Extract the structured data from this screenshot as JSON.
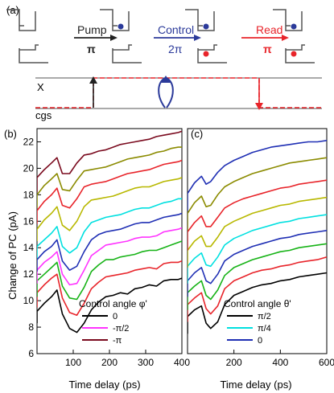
{
  "figure": {
    "panel_a_label": "(a)",
    "panel_b_label": "(b)",
    "panel_c_label": "(c)",
    "steps": [
      {
        "name": "Pump",
        "pulse": "π",
        "color": "#222222"
      },
      {
        "name": "Control",
        "pulse": "2π",
        "color": "#2b3a9a"
      },
      {
        "name": "Read",
        "pulse": "π",
        "color": "#e8242a"
      }
    ],
    "level_labels": {
      "upper": "X",
      "lower": "cgs"
    },
    "colors": {
      "dot_blue": "#2b3a9a",
      "dot_red": "#e8242a",
      "ladder_line": "#555555",
      "dashed": "#e8242a"
    }
  },
  "chart_data": [
    {
      "type": "line",
      "panel": "(b)",
      "ylabel": "Change of PC (pA)",
      "xlabel": "Time delay (ps)",
      "xlim": [
        0,
        400
      ],
      "ylim": [
        6,
        23
      ],
      "xticks": [
        100,
        200,
        300,
        400
      ],
      "yticks": [
        6,
        8,
        10,
        12,
        14,
        16,
        18,
        20,
        22
      ],
      "legend_title": "Control angle φ'",
      "legend_placement": "bottom-right",
      "legend": [
        {
          "name": "0",
          "color": "#000000"
        },
        {
          "name": "-π/2",
          "color": "#ff33ff"
        },
        {
          "name": "-π",
          "color": "#7a0a1e"
        }
      ],
      "series": [
        {
          "color": "#000000",
          "base": 8.3,
          "x": [
            0,
            20,
            40,
            55,
            70,
            90,
            110,
            130,
            150,
            170,
            190,
            210,
            230,
            250,
            270,
            290,
            310,
            330,
            350,
            370,
            390,
            400
          ],
          "y": [
            9.2,
            9.8,
            10.3,
            10.8,
            9.0,
            7.9,
            7.6,
            8.3,
            9.3,
            9.9,
            10.3,
            10.4,
            10.6,
            10.5,
            10.9,
            11.0,
            11.2,
            11.1,
            11.5,
            11.6,
            11.6,
            11.7
          ]
        },
        {
          "color": "#e8242a",
          "base": 9.5,
          "x": [
            0,
            20,
            40,
            55,
            70,
            90,
            110,
            130,
            150,
            170,
            190,
            210,
            230,
            250,
            270,
            290,
            310,
            330,
            350,
            370,
            390,
            400
          ],
          "y": [
            10.6,
            11.2,
            11.7,
            12.0,
            10.2,
            9.1,
            8.9,
            9.8,
            10.9,
            11.4,
            11.8,
            11.9,
            12.0,
            12.1,
            12.3,
            12.4,
            12.5,
            12.4,
            12.8,
            12.9,
            12.9,
            13.0
          ]
        },
        {
          "color": "#17b317",
          "base": 10.3,
          "x": [
            0,
            20,
            40,
            55,
            70,
            90,
            110,
            130,
            150,
            170,
            190,
            210,
            230,
            250,
            270,
            290,
            310,
            330,
            350,
            370,
            390,
            400
          ],
          "y": [
            11.5,
            12.0,
            12.5,
            12.9,
            11.1,
            10.2,
            10.1,
            11.0,
            12.2,
            12.7,
            13.1,
            13.1,
            13.3,
            13.4,
            13.5,
            13.7,
            13.8,
            13.8,
            14.0,
            14.2,
            14.4,
            14.5
          ]
        },
        {
          "color": "#ff33ff",
          "base": 11.3,
          "x": [
            0,
            20,
            40,
            55,
            70,
            90,
            110,
            130,
            150,
            170,
            190,
            210,
            230,
            250,
            270,
            290,
            310,
            330,
            350,
            370,
            390,
            400
          ],
          "y": [
            12.3,
            12.9,
            13.3,
            13.7,
            12.0,
            11.2,
            11.3,
            12.3,
            13.4,
            13.8,
            14.2,
            14.3,
            14.4,
            14.5,
            14.7,
            14.8,
            14.8,
            14.9,
            15.2,
            15.3,
            15.4,
            15.5
          ]
        },
        {
          "color": "#1f2fb4",
          "base": 12.2,
          "x": [
            0,
            20,
            40,
            55,
            70,
            90,
            110,
            130,
            150,
            170,
            190,
            210,
            230,
            250,
            270,
            290,
            310,
            330,
            350,
            370,
            390,
            400
          ],
          "y": [
            13.1,
            13.7,
            14.1,
            14.6,
            13.0,
            12.3,
            12.6,
            13.7,
            14.6,
            15.0,
            15.2,
            15.3,
            15.4,
            15.6,
            15.8,
            15.9,
            15.9,
            16.1,
            16.3,
            16.4,
            16.5,
            16.6
          ]
        },
        {
          "color": "#00e0e0",
          "base": 13.2,
          "x": [
            0,
            20,
            40,
            55,
            70,
            90,
            110,
            130,
            150,
            170,
            190,
            210,
            230,
            250,
            270,
            290,
            310,
            330,
            350,
            370,
            390,
            400
          ],
          "y": [
            14.1,
            14.6,
            15.1,
            15.6,
            14.1,
            13.6,
            14.0,
            15.2,
            15.9,
            16.1,
            16.3,
            16.4,
            16.5,
            16.7,
            16.9,
            17.0,
            17.0,
            17.2,
            17.4,
            17.5,
            17.7,
            17.7
          ]
        },
        {
          "color": "#b8b800",
          "base": 14.5,
          "x": [
            0,
            20,
            40,
            55,
            70,
            90,
            110,
            130,
            150,
            170,
            190,
            210,
            230,
            250,
            270,
            290,
            310,
            330,
            350,
            370,
            390,
            400
          ],
          "y": [
            15.4,
            16.1,
            16.6,
            17.1,
            15.7,
            15.3,
            16.0,
            17.1,
            17.6,
            17.7,
            17.8,
            17.9,
            18.1,
            18.3,
            18.5,
            18.6,
            18.6,
            18.8,
            19.0,
            19.1,
            19.2,
            19.3
          ]
        },
        {
          "color": "#e8242a",
          "base": 15.8,
          "x": [
            0,
            20,
            40,
            55,
            70,
            90,
            110,
            130,
            150,
            170,
            190,
            210,
            230,
            250,
            270,
            290,
            310,
            330,
            350,
            370,
            390,
            400
          ],
          "y": [
            16.8,
            17.5,
            18.0,
            18.5,
            17.2,
            17.0,
            17.7,
            18.6,
            18.8,
            18.9,
            19.0,
            19.2,
            19.4,
            19.6,
            19.7,
            19.8,
            19.9,
            20.1,
            20.3,
            20.4,
            20.5,
            20.6
          ]
        },
        {
          "color": "#8b8b00",
          "base": 17.0,
          "x": [
            0,
            20,
            40,
            55,
            70,
            90,
            110,
            130,
            150,
            170,
            190,
            210,
            230,
            250,
            270,
            290,
            310,
            330,
            350,
            370,
            390,
            400
          ],
          "y": [
            18.0,
            18.7,
            19.2,
            19.6,
            18.4,
            18.3,
            19.1,
            19.8,
            19.9,
            20.0,
            20.1,
            20.3,
            20.5,
            20.7,
            20.8,
            20.9,
            21.0,
            21.2,
            21.3,
            21.5,
            21.6,
            21.6
          ]
        },
        {
          "color": "#7a0a1e",
          "base": 18.2,
          "x": [
            0,
            20,
            40,
            55,
            70,
            90,
            110,
            130,
            150,
            170,
            190,
            210,
            230,
            250,
            270,
            290,
            310,
            330,
            350,
            370,
            390,
            400
          ],
          "y": [
            19.3,
            19.9,
            20.4,
            20.8,
            19.6,
            19.6,
            20.4,
            21.0,
            21.1,
            21.3,
            21.4,
            21.6,
            21.8,
            21.9,
            22.0,
            22.1,
            22.2,
            22.4,
            22.5,
            22.6,
            22.7,
            22.8
          ]
        }
      ]
    },
    {
      "type": "line",
      "panel": "(c)",
      "xlabel": "Time delay (ps)",
      "xlim": [
        0,
        600
      ],
      "ylim": [
        6,
        23
      ],
      "xticks": [
        200,
        400,
        600
      ],
      "legend_title": "Control angle θ'",
      "legend_placement": "bottom-right",
      "legend": [
        {
          "name": "π/2",
          "color": "#000000"
        },
        {
          "name": "π/4",
          "color": "#00e0e0"
        },
        {
          "name": "0",
          "color": "#1f2fb4"
        }
      ],
      "series": [
        {
          "color": "#000000",
          "base": 7.5,
          "x": [
            0,
            30,
            60,
            80,
            100,
            130,
            160,
            200,
            240,
            280,
            320,
            360,
            400,
            440,
            480,
            520,
            560,
            600
          ],
          "y": [
            8.8,
            9.3,
            9.6,
            8.3,
            7.9,
            8.4,
            9.7,
            10.4,
            10.7,
            11.0,
            11.2,
            11.3,
            11.5,
            11.6,
            11.8,
            11.9,
            12.0,
            12.1
          ]
        },
        {
          "color": "#e8242a",
          "base": 8.4,
          "x": [
            0,
            30,
            60,
            80,
            100,
            130,
            160,
            200,
            240,
            280,
            320,
            360,
            400,
            440,
            480,
            520,
            560,
            600
          ],
          "y": [
            9.7,
            10.2,
            10.6,
            9.4,
            9.0,
            9.6,
            10.9,
            11.5,
            11.8,
            12.1,
            12.3,
            12.4,
            12.6,
            12.7,
            12.9,
            13.0,
            13.1,
            13.3
          ]
        },
        {
          "color": "#17b317",
          "base": 9.3,
          "x": [
            0,
            30,
            60,
            80,
            100,
            130,
            160,
            200,
            240,
            280,
            320,
            360,
            400,
            440,
            480,
            520,
            560,
            600
          ],
          "y": [
            10.6,
            11.1,
            11.5,
            10.4,
            10.1,
            10.8,
            11.9,
            12.5,
            12.8,
            13.1,
            13.3,
            13.5,
            13.7,
            13.8,
            14.0,
            14.1,
            14.2,
            14.3
          ]
        },
        {
          "color": "#1f2fb4",
          "base": 10.3,
          "x": [
            0,
            30,
            60,
            80,
            100,
            130,
            160,
            200,
            240,
            280,
            320,
            360,
            400,
            440,
            480,
            520,
            560,
            600
          ],
          "y": [
            11.5,
            12.1,
            12.5,
            11.5,
            11.3,
            12.0,
            13.0,
            13.5,
            13.8,
            14.1,
            14.3,
            14.5,
            14.7,
            14.8,
            15.0,
            15.1,
            15.2,
            15.3
          ]
        },
        {
          "color": "#00e0e0",
          "base": 11.3,
          "x": [
            0,
            30,
            60,
            80,
            100,
            130,
            160,
            200,
            240,
            280,
            320,
            360,
            400,
            440,
            480,
            520,
            560,
            600
          ],
          "y": [
            12.6,
            13.2,
            13.6,
            12.7,
            12.6,
            13.3,
            14.2,
            14.7,
            15.0,
            15.3,
            15.5,
            15.7,
            15.9,
            16.0,
            16.2,
            16.3,
            16.4,
            16.5
          ]
        },
        {
          "color": "#b8b800",
          "base": 12.5,
          "x": [
            0,
            30,
            60,
            80,
            100,
            130,
            160,
            200,
            240,
            280,
            320,
            360,
            400,
            440,
            480,
            520,
            560,
            600
          ],
          "y": [
            13.8,
            14.5,
            14.9,
            14.1,
            14.1,
            14.8,
            15.6,
            16.0,
            16.3,
            16.6,
            16.8,
            17.0,
            17.2,
            17.3,
            17.5,
            17.6,
            17.7,
            17.8
          ]
        },
        {
          "color": "#e8242a",
          "base": 13.8,
          "x": [
            0,
            30,
            60,
            80,
            100,
            130,
            160,
            200,
            240,
            280,
            320,
            360,
            400,
            440,
            480,
            520,
            560,
            600
          ],
          "y": [
            15.2,
            15.9,
            16.4,
            15.6,
            15.6,
            16.3,
            17.0,
            17.4,
            17.7,
            17.9,
            18.1,
            18.3,
            18.5,
            18.6,
            18.8,
            18.9,
            19.0,
            19.1
          ]
        },
        {
          "color": "#8b8b00",
          "base": 15.3,
          "x": [
            0,
            30,
            60,
            80,
            100,
            130,
            160,
            200,
            240,
            280,
            320,
            360,
            400,
            440,
            480,
            520,
            560,
            600
          ],
          "y": [
            16.6,
            17.4,
            17.9,
            17.1,
            17.2,
            18.0,
            18.6,
            19.0,
            19.3,
            19.6,
            19.8,
            20.0,
            20.2,
            20.4,
            20.5,
            20.6,
            20.7,
            20.8
          ]
        },
        {
          "color": "#1f2fb4",
          "base": 16.8,
          "x": [
            0,
            30,
            60,
            80,
            100,
            130,
            160,
            200,
            240,
            280,
            320,
            360,
            400,
            440,
            480,
            520,
            560,
            600
          ],
          "y": [
            18.1,
            18.9,
            19.4,
            18.8,
            19.0,
            19.7,
            20.2,
            20.6,
            20.9,
            21.2,
            21.4,
            21.6,
            21.7,
            21.8,
            21.9,
            22.0,
            22.0,
            22.1
          ]
        }
      ]
    }
  ]
}
